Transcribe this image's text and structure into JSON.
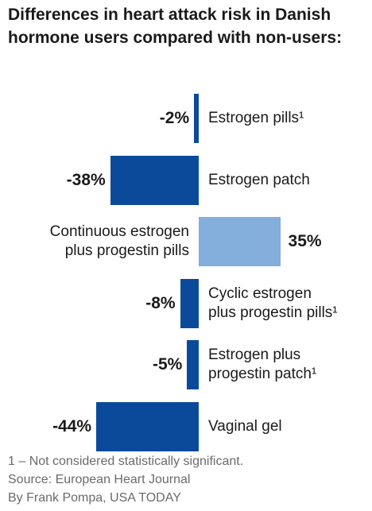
{
  "chart_data": {
    "type": "bar",
    "orientation": "horizontal",
    "title": "Differences in heart attack risk in Danish hormone users compared with non-users:",
    "categories": [
      "Estrogen pills¹",
      "Estrogen patch",
      "Continuous estrogen\nplus progestin pills",
      "Cyclic estrogen\nplus progestin pills¹",
      "Estrogen plus\nprogestin patch¹",
      "Vaginal gel"
    ],
    "values": [
      -2,
      -38,
      35,
      -8,
      -5,
      -44
    ],
    "value_labels": [
      "-2%",
      "-38%",
      "35%",
      "-8%",
      "-5%",
      "-44%"
    ],
    "colors": [
      "#0b4a9b",
      "#0b4a9b",
      "#84aedb",
      "#0b4a9b",
      "#0b4a9b",
      "#0b4a9b"
    ],
    "footnotes": [
      "1 – Not considered statistically significant.",
      "Source: European Heart Journal",
      "By Frank Pompa, USA TODAY"
    ]
  }
}
